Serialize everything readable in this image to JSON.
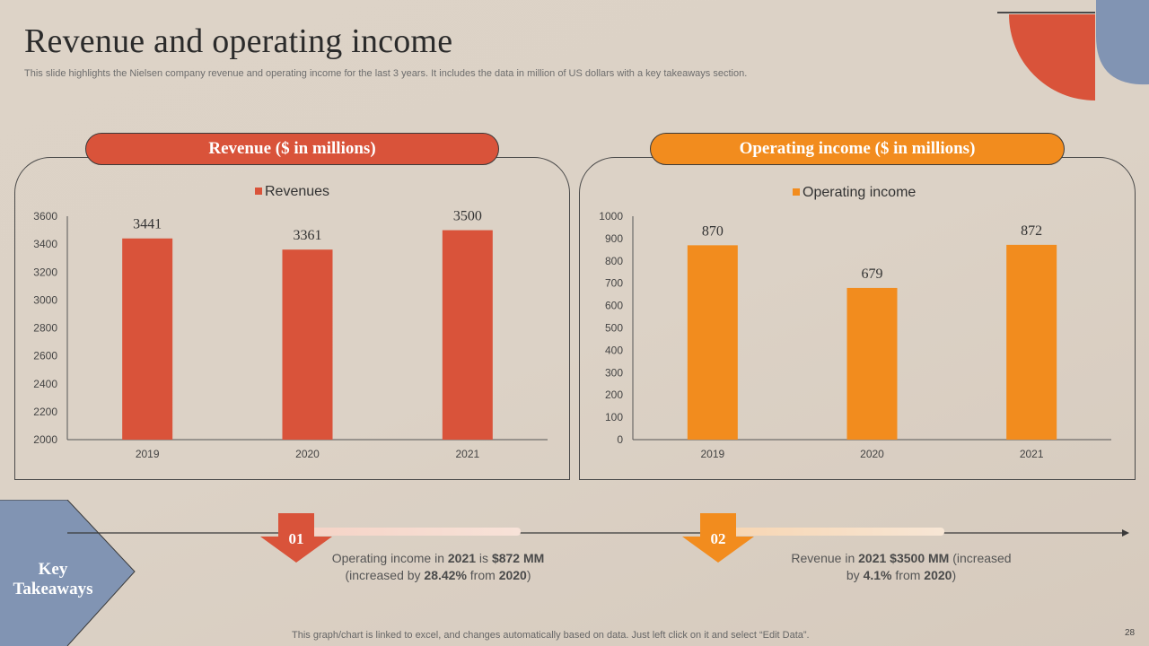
{
  "slide": {
    "title": "Revenue and operating income",
    "subtitle": "This slide highlights the Nielsen company revenue and operating income for the last 3 years. It includes the data in million of US dollars with a key takeaways section.",
    "footer": "This graph/chart is linked to excel,  and changes automatically based on data. Just left click on it and select “Edit Data”.",
    "page_number": "28"
  },
  "panels": {
    "left_title": "Revenue ($ in millions)",
    "right_title": "Operating income ($ in millions)"
  },
  "key_takeaways": {
    "label_line1": "Key",
    "label_line2": "Takeaways",
    "items": [
      {
        "number": "01",
        "text_pre": "Operating income in ",
        "year": "2021",
        "text_mid": " is ",
        "value": "$872 MM",
        "line2_pre": "(increased by ",
        "pct": "28.42%",
        "line2_mid": " from ",
        "ref_year": "2020",
        "line2_post": ")"
      },
      {
        "number": "02",
        "text_pre": "Revenue in ",
        "year": "2021",
        "text_mid": " ",
        "value": "$3500 MM",
        "text_post": " (increased",
        "line2_pre": "by ",
        "pct": "4.1%",
        "line2_mid": " from ",
        "ref_year": "2020",
        "line2_post": ")"
      }
    ]
  },
  "colors": {
    "revenue": "#d9533a",
    "operating_income": "#f28c1e",
    "blue": "#8194b3"
  },
  "chart_data": [
    {
      "type": "bar",
      "categories": [
        "2019",
        "2020",
        "2021"
      ],
      "series": [
        {
          "name": "Revenues",
          "values": [
            3441,
            3361,
            3500
          ]
        }
      ],
      "ylim": [
        2000,
        3600
      ],
      "yticks": [
        2000,
        2200,
        2400,
        2600,
        2800,
        3000,
        3200,
        3400,
        3600
      ],
      "legend": "top-center",
      "grid": false
    },
    {
      "type": "bar",
      "categories": [
        "2019",
        "2020",
        "2021"
      ],
      "series": [
        {
          "name": "Operating income",
          "values": [
            870,
            679,
            872
          ]
        }
      ],
      "ylim": [
        0,
        1000
      ],
      "yticks": [
        0,
        100,
        200,
        300,
        400,
        500,
        600,
        700,
        800,
        900,
        1000
      ],
      "legend": "top-center",
      "grid": false
    }
  ]
}
